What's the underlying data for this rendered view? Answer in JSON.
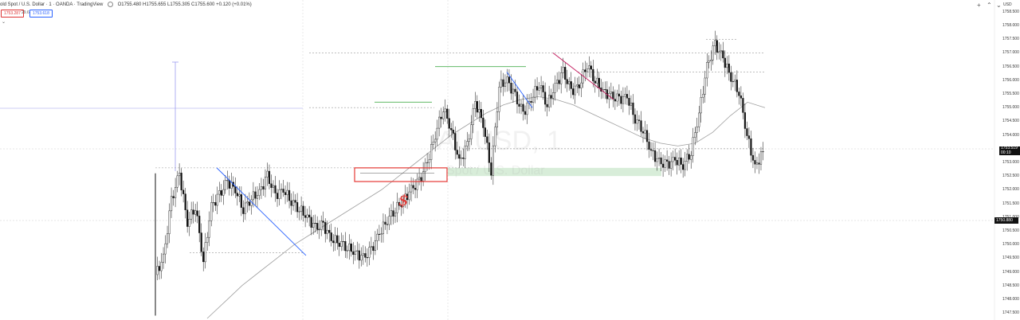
{
  "header": {
    "symbol_label": "old Spot / U.S. Dollar · 1 · OANDA · TradingView",
    "ohlc": "O1755.480 H1755.655 L1755.305 C1755.600 +0.120 (+0.01%)"
  },
  "trade": {
    "sell": "1753.287",
    "spread": "29.6",
    "buy": "1753.618"
  },
  "currency": "USD",
  "y_ticks": [
    "1758.500",
    "1758.000",
    "1757.500",
    "1757.000",
    "1756.500",
    "1756.000",
    "1755.500",
    "1755.000",
    "1754.500",
    "1754.000",
    "1753.500",
    "1753.000",
    "1752.500",
    "1752.000",
    "1751.500",
    "1751.000",
    "1750.500",
    "1750.000",
    "1749.500",
    "1749.000",
    "1748.500",
    "1748.000",
    "1747.500"
  ],
  "price_tag": {
    "price": "1753.519",
    "time": "00:10"
  },
  "marker_tag": "1750.880",
  "watermark": {
    "symbol": "AUUSD, 1",
    "desc": "Spot / U.S. Dollar"
  },
  "annotation_text": "$",
  "colors": {
    "candle": "#111111",
    "trendline": "#2962ff",
    "resistance": "#4caf50",
    "zone": "#c8e6c9",
    "box": "#e53935",
    "ma": "#9e9e9e"
  },
  "chart_data": {
    "type": "line",
    "ylim": [
      1747.3,
      1758.7
    ],
    "y_ticks": [
      1758.5,
      1758.0,
      1757.5,
      1757.0,
      1756.5,
      1756.0,
      1755.5,
      1755.0,
      1754.5,
      1754.0,
      1753.5,
      1753.0,
      1752.5,
      1752.0,
      1751.5,
      1751.0,
      1750.5,
      1750.0,
      1749.5,
      1749.0,
      1748.5,
      1748.0,
      1747.5
    ],
    "series": [
      {
        "values": [
          1748.9,
          1749.5,
          1751.6,
          1752.6,
          1750.8,
          1751.4,
          1749.4,
          1751.4,
          1751.8,
          1752.3,
          1752.0,
          1751.3,
          1751.7,
          1751.9,
          1752.5,
          1751.8,
          1752.0,
          1751.6,
          1751.3,
          1751.0,
          1750.6,
          1750.7,
          1750.2,
          1750.1,
          1749.9,
          1749.7,
          1749.5,
          1749.8,
          1750.4,
          1750.9,
          1751.3,
          1751.6,
          1752.0,
          1752.3,
          1753.0,
          1754.0,
          1755.0,
          1754.2,
          1753.0,
          1753.6,
          1755.2,
          1754.4,
          1752.7,
          1755.8,
          1756.0,
          1755.4,
          1754.8,
          1755.3,
          1755.9,
          1755.1,
          1755.8,
          1756.3,
          1755.6,
          1755.8,
          1756.6,
          1756.0,
          1755.6,
          1755.4,
          1755.3,
          1755.4,
          1754.6,
          1754.2,
          1753.4,
          1753.0,
          1752.9,
          1753.1,
          1752.9,
          1753.4,
          1754.8,
          1756.5,
          1757.3,
          1756.8,
          1756.1,
          1755.6,
          1754.0,
          1752.8,
          1753.4
        ]
      }
    ],
    "ma_values": [
      1747.3,
      1747.9,
      1748.5,
      1749.0,
      1749.5,
      1750.0,
      1750.4,
      1750.8,
      1751.2,
      1751.6,
      1752.0,
      1752.5,
      1753.0,
      1753.5,
      1754.0,
      1754.4,
      1754.8,
      1755.1,
      1755.3,
      1755.4,
      1755.3,
      1755.1,
      1754.8,
      1754.5,
      1754.2,
      1753.9,
      1753.7,
      1753.6,
      1753.7,
      1754.1,
      1754.7,
      1755.2,
      1755.0
    ],
    "h_levels": [
      1757.5,
      1757.0,
      1756.3,
      1755.0,
      1753.5,
      1752.8,
      1749.7,
      1750.9
    ],
    "resistance_levels": [
      1756.5,
      1755.2
    ],
    "zone": [
      1752.5,
      1752.8
    ],
    "box": [
      1752.3,
      1752.8
    ],
    "trendlines": [
      [
        1752.8,
        1749.6
      ],
      [
        1756.3,
        1755.0
      ],
      [
        1757.0,
        1755.3
      ]
    ]
  }
}
